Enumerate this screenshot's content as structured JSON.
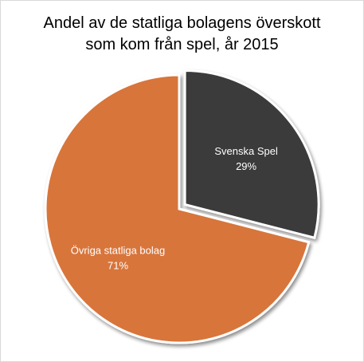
{
  "chart_data": {
    "type": "pie",
    "title": [
      "Andel av de statliga bolagens överskott",
      "som kom från spel, år 2015"
    ],
    "slices": [
      {
        "label": "Svenska Spel",
        "value": 29,
        "value_text": "29%",
        "color": "#3a3a3a",
        "exploded": true
      },
      {
        "label": "Övriga statliga bolag",
        "value": 71,
        "value_text": "71%",
        "color": "#d8743a",
        "exploded": false
      }
    ],
    "legend": "none"
  }
}
